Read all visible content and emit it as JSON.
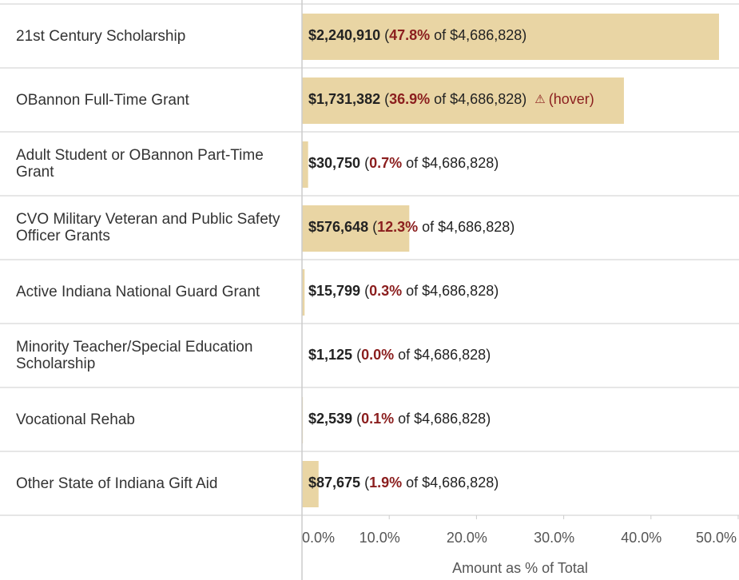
{
  "chart_data": {
    "type": "bar",
    "orientation": "horizontal",
    "categories": [
      "21st Century Scholarship",
      "OBannon Full-Time Grant",
      "Adult Student or OBannon Part-Time Grant",
      "CVO Military Veteran and Public Safety Officer Grants",
      "Active Indiana National Guard Grant",
      "Minority Teacher/Special Education Scholarship",
      "Vocational Rehab",
      "Other State of Indiana Gift Aid"
    ],
    "values": [
      47.8,
      36.9,
      0.7,
      12.3,
      0.3,
      0.0,
      0.1,
      1.9
    ],
    "value_labels": [
      "47.8%",
      "36.9%",
      "0.7%",
      "12.3%",
      "0.3%",
      "0.0%",
      "0.1%",
      "1.9%"
    ],
    "amounts": [
      "$2,240,910",
      "$1,731,382",
      "$30,750",
      "$576,648",
      "$15,799",
      "$1,125",
      "$2,539",
      "$87,675"
    ],
    "total": "$4,686,828",
    "label_parts": {
      "open": "(",
      "of": "of",
      "close": ")"
    },
    "annotation": {
      "row": 1,
      "icon": "⚠",
      "text": "(hover)"
    },
    "color": "#e9d5a4",
    "xlabel": "Amount as % of Total",
    "xlim": [
      0,
      50
    ],
    "xticks": [
      {
        "value": 0,
        "label": "0.0%"
      },
      {
        "value": 10,
        "label": "10.0%"
      },
      {
        "value": 20,
        "label": "20.0%"
      },
      {
        "value": 30,
        "label": "30.0%"
      },
      {
        "value": 40,
        "label": "40.0%"
      },
      {
        "value": 50,
        "label": "50.0%"
      }
    ]
  }
}
